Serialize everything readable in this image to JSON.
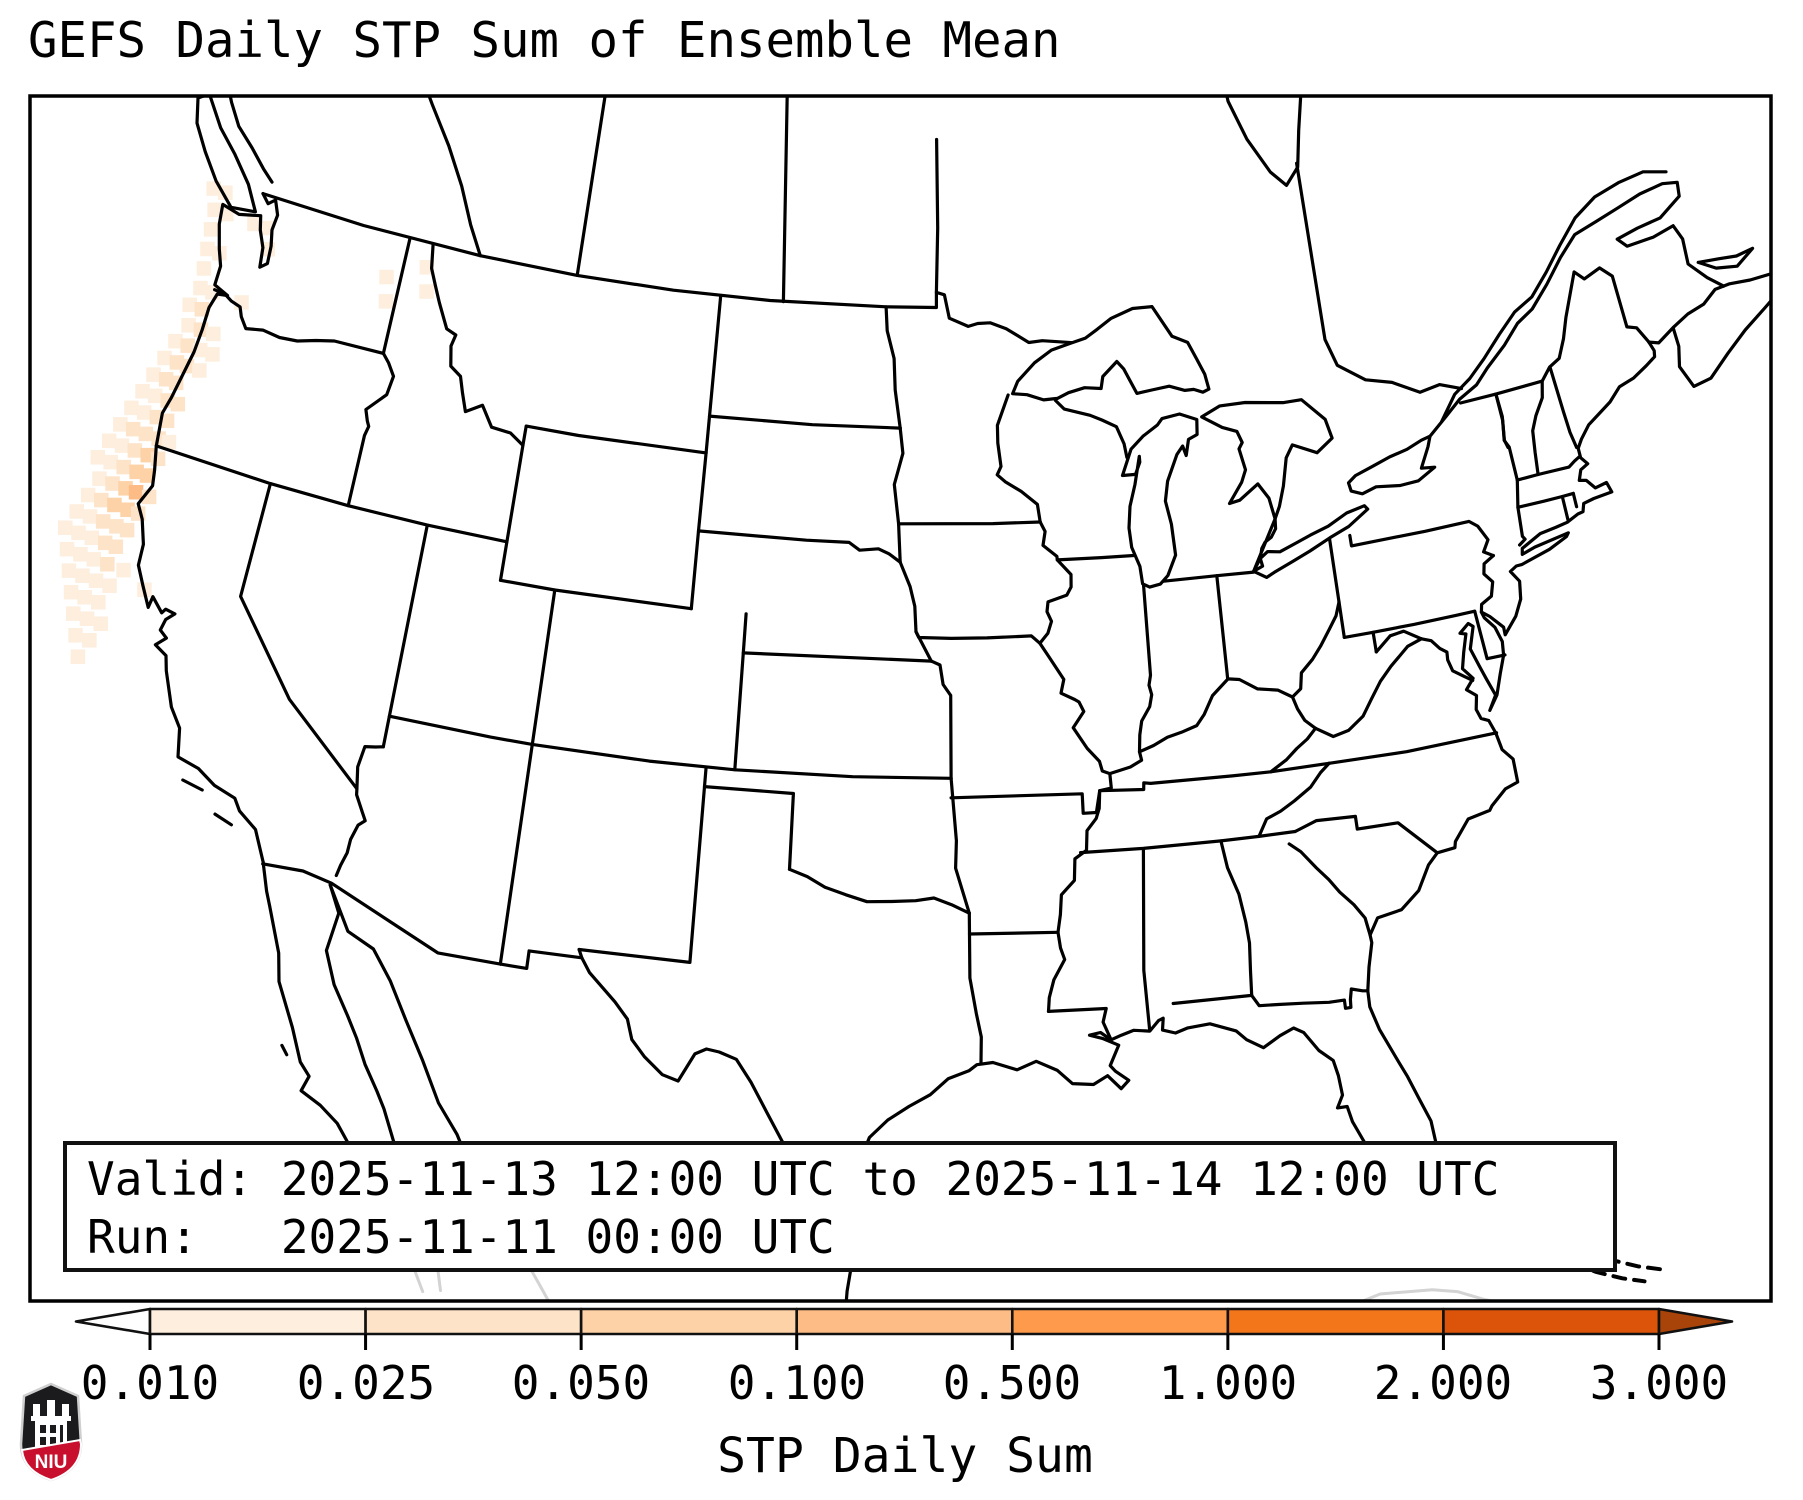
{
  "title": "GEFS Daily STP Sum of Ensemble Mean",
  "info_box": {
    "valid_line": "Valid: 2025-11-13 12:00 UTC to 2025-11-14 12:00 UTC",
    "run_line": "Run:   2025-11-11 00:00 UTC"
  },
  "colorbar": {
    "label": "STP Daily Sum",
    "ticks": [
      "0.010",
      "0.025",
      "0.050",
      "0.100",
      "0.500",
      "1.000",
      "2.000",
      "3.000"
    ],
    "segment_colors": [
      "#fdeedd",
      "#fde3c8",
      "#fdd2a6",
      "#fdbc85",
      "#fd9a4b",
      "#f4761b",
      "#db540a"
    ],
    "under_color": "#ffffff",
    "over_color": "#a8430a",
    "outline_color": "#111111"
  },
  "logo": {
    "text": "NIU",
    "shield_color": "#1b1b1d",
    "band_color": "#c8102e"
  },
  "chart_data": {
    "type": "heatmap",
    "title": "GEFS Daily STP Sum of Ensemble Mean",
    "value_label": "STP Daily Sum",
    "level_boundaries": [
      0.01,
      0.025,
      0.05,
      0.1,
      0.5,
      1.0,
      2.0,
      3.0
    ],
    "level_colors": [
      "#fdeedd",
      "#fde3c8",
      "#fdd2a6",
      "#fdbc85"
    ],
    "valid_from": "2025-11-13 12:00 UTC",
    "valid_to": "2025-11-14 12:00 UTC",
    "run": "2025-11-11 00:00 UTC",
    "region_note": "Shaded 0.5-deg cells along Pacific Northwest / N. California coast; peak ~0.1-0.5 near Cape Mendocino",
    "cells": [
      {
        "lon": -125.3,
        "lat": 48.7,
        "level": 1
      },
      {
        "lon": -124.8,
        "lat": 48.7,
        "level": 1
      },
      {
        "lon": -125.0,
        "lat": 48.2,
        "level": 1
      },
      {
        "lon": -124.5,
        "lat": 48.2,
        "level": 1
      },
      {
        "lon": -123.3,
        "lat": 48.2,
        "level": 1
      },
      {
        "lon": -122.8,
        "lat": 48.2,
        "level": 1
      },
      {
        "lon": -124.9,
        "lat": 47.7,
        "level": 1
      },
      {
        "lon": -122.5,
        "lat": 47.7,
        "level": 1
      },
      {
        "lon": -117.6,
        "lat": 47.9,
        "level": 1
      },
      {
        "lon": -117.4,
        "lat": 47.3,
        "level": 1
      },
      {
        "lon": -116.1,
        "lat": 48.4,
        "level": 1
      },
      {
        "lon": -115.9,
        "lat": 47.8,
        "level": 1
      },
      {
        "lon": -124.8,
        "lat": 47.2,
        "level": 1
      },
      {
        "lon": -124.3,
        "lat": 47.2,
        "level": 1
      },
      {
        "lon": -124.7,
        "lat": 46.7,
        "level": 1
      },
      {
        "lon": -124.6,
        "lat": 46.2,
        "level": 1
      },
      {
        "lon": -124.1,
        "lat": 46.2,
        "level": 1
      },
      {
        "lon": -122.9,
        "lat": 46.2,
        "level": 1
      },
      {
        "lon": -124.8,
        "lat": 45.7,
        "level": 1
      },
      {
        "lon": -124.3,
        "lat": 45.7,
        "level": 2
      },
      {
        "lon": -124.6,
        "lat": 45.2,
        "level": 1
      },
      {
        "lon": -124.1,
        "lat": 45.2,
        "level": 2
      },
      {
        "lon": -123.6,
        "lat": 45.2,
        "level": 1
      },
      {
        "lon": -124.9,
        "lat": 44.7,
        "level": 1
      },
      {
        "lon": -124.4,
        "lat": 44.7,
        "level": 2
      },
      {
        "lon": -123.9,
        "lat": 44.7,
        "level": 1
      },
      {
        "lon": -123.4,
        "lat": 44.7,
        "level": 1
      },
      {
        "lon": -125.1,
        "lat": 44.2,
        "level": 1
      },
      {
        "lon": -124.6,
        "lat": 44.2,
        "level": 2
      },
      {
        "lon": -124.2,
        "lat": 44.2,
        "level": 2
      },
      {
        "lon": -123.7,
        "lat": 44.2,
        "level": 1
      },
      {
        "lon": -125.3,
        "lat": 43.7,
        "level": 1
      },
      {
        "lon": -124.8,
        "lat": 43.7,
        "level": 2
      },
      {
        "lon": -124.4,
        "lat": 43.7,
        "level": 2
      },
      {
        "lon": -125.5,
        "lat": 43.2,
        "level": 1
      },
      {
        "lon": -125.0,
        "lat": 43.2,
        "level": 1
      },
      {
        "lon": -124.5,
        "lat": 43.2,
        "level": 2
      },
      {
        "lon": -124.1,
        "lat": 43.2,
        "level": 2
      },
      {
        "lon": -125.7,
        "lat": 42.7,
        "level": 1
      },
      {
        "lon": -125.2,
        "lat": 42.7,
        "level": 1
      },
      {
        "lon": -124.7,
        "lat": 42.7,
        "level": 2
      },
      {
        "lon": -124.3,
        "lat": 42.7,
        "level": 2
      },
      {
        "lon": -125.9,
        "lat": 42.2,
        "level": 1
      },
      {
        "lon": -125.4,
        "lat": 42.2,
        "level": 2
      },
      {
        "lon": -124.9,
        "lat": 42.2,
        "level": 2
      },
      {
        "lon": -124.4,
        "lat": 42.2,
        "level": 2
      },
      {
        "lon": -124.0,
        "lat": 42.2,
        "level": 1
      },
      {
        "lon": -126.1,
        "lat": 41.7,
        "level": 1
      },
      {
        "lon": -125.6,
        "lat": 41.7,
        "level": 1
      },
      {
        "lon": -125.1,
        "lat": 41.7,
        "level": 2
      },
      {
        "lon": -124.6,
        "lat": 41.7,
        "level": 3
      },
      {
        "lon": -124.2,
        "lat": 41.7,
        "level": 2
      },
      {
        "lon": -126.3,
        "lat": 41.2,
        "level": 1
      },
      {
        "lon": -125.8,
        "lat": 41.2,
        "level": 1
      },
      {
        "lon": -125.3,
        "lat": 41.2,
        "level": 2
      },
      {
        "lon": -124.8,
        "lat": 41.2,
        "level": 3
      },
      {
        "lon": -124.4,
        "lat": 41.2,
        "level": 3
      },
      {
        "lon": -126.0,
        "lat": 40.7,
        "level": 1
      },
      {
        "lon": -125.5,
        "lat": 40.7,
        "level": 2
      },
      {
        "lon": -125.0,
        "lat": 40.7,
        "level": 3
      },
      {
        "lon": -124.6,
        "lat": 40.7,
        "level": 4
      },
      {
        "lon": -124.1,
        "lat": 40.7,
        "level": 2
      },
      {
        "lon": -126.2,
        "lat": 40.2,
        "level": 1
      },
      {
        "lon": -125.7,
        "lat": 40.2,
        "level": 2
      },
      {
        "lon": -125.2,
        "lat": 40.2,
        "level": 3
      },
      {
        "lon": -124.7,
        "lat": 40.2,
        "level": 3
      },
      {
        "lon": -124.3,
        "lat": 40.2,
        "level": 2
      },
      {
        "lon": -126.4,
        "lat": 39.7,
        "level": 1
      },
      {
        "lon": -125.9,
        "lat": 39.7,
        "level": 1
      },
      {
        "lon": -125.4,
        "lat": 39.7,
        "level": 2
      },
      {
        "lon": -124.9,
        "lat": 39.7,
        "level": 2
      },
      {
        "lon": -124.5,
        "lat": 39.7,
        "level": 2
      },
      {
        "lon": -126.6,
        "lat": 39.2,
        "level": 1
      },
      {
        "lon": -126.1,
        "lat": 39.2,
        "level": 1
      },
      {
        "lon": -125.6,
        "lat": 39.2,
        "level": 1
      },
      {
        "lon": -125.1,
        "lat": 39.2,
        "level": 2
      },
      {
        "lon": -124.7,
        "lat": 39.2,
        "level": 2
      },
      {
        "lon": -126.3,
        "lat": 38.7,
        "level": 1
      },
      {
        "lon": -125.8,
        "lat": 38.7,
        "level": 1
      },
      {
        "lon": -125.3,
        "lat": 38.7,
        "level": 1
      },
      {
        "lon": -124.8,
        "lat": 38.7,
        "level": 2
      },
      {
        "lon": -124.2,
        "lat": 38.7,
        "level": 1
      },
      {
        "lon": -126.0,
        "lat": 38.2,
        "level": 1
      },
      {
        "lon": -125.5,
        "lat": 38.2,
        "level": 1
      },
      {
        "lon": -125.0,
        "lat": 38.2,
        "level": 1
      },
      {
        "lon": -124.5,
        "lat": 38.2,
        "level": 1
      },
      {
        "lon": -123.3,
        "lat": 38.4,
        "level": 1
      },
      {
        "lon": -125.7,
        "lat": 37.7,
        "level": 1
      },
      {
        "lon": -125.2,
        "lat": 37.7,
        "level": 1
      },
      {
        "lon": -124.7,
        "lat": 37.7,
        "level": 1
      },
      {
        "lon": -125.4,
        "lat": 37.2,
        "level": 1
      },
      {
        "lon": -124.9,
        "lat": 37.2,
        "level": 1
      },
      {
        "lon": -124.4,
        "lat": 37.2,
        "level": 1
      },
      {
        "lon": -125.1,
        "lat": 36.7,
        "level": 1
      },
      {
        "lon": -124.6,
        "lat": 36.7,
        "level": 1
      },
      {
        "lon": -124.8,
        "lat": 36.2,
        "level": 1
      }
    ]
  }
}
